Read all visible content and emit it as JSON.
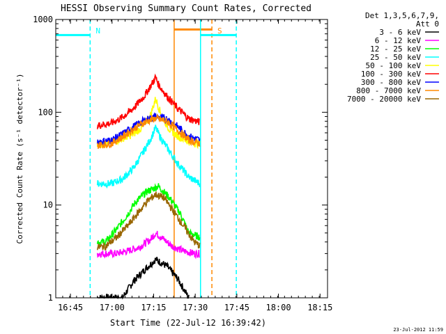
{
  "chart_data": {
    "type": "line",
    "title": "HESSI Observing Summary Count Rates, Corrected",
    "xlabel": "Start Time (22-Jul-12 16:39:42)",
    "ylabel": "Corrected Count Rate (s⁻¹ detector⁻¹)",
    "ylog": true,
    "ylim": [
      1,
      1000
    ],
    "xlim_minutes": [
      0,
      98
    ],
    "x_tick_labels": [
      "16:45",
      "17:00",
      "17:15",
      "17:30",
      "17:45",
      "18:00",
      "18:15"
    ],
    "x_tick_minutes": [
      5.3,
      20.3,
      35.3,
      50.3,
      65.3,
      80.3,
      95.3
    ],
    "y_tick_labels": [
      "1",
      "10",
      "100",
      "1000"
    ],
    "y_tick_values": [
      1,
      10,
      100,
      1000
    ],
    "legend_header": [
      "Det 1,3,5,6,7,9,",
      "Att 0"
    ],
    "legend_position": "top-right",
    "series": [
      {
        "name": "3 - 6 keV",
        "color": "#000000",
        "x": [
          15,
          24,
          28,
          32,
          36,
          40,
          44,
          48
        ],
        "y": [
          1,
          1,
          1.5,
          2,
          2.6,
          2.2,
          1.6,
          1
        ]
      },
      {
        "name": "6 - 12 keV",
        "color": "#ff00ff",
        "x": [
          15,
          18,
          22,
          26,
          30,
          34,
          36,
          38,
          42,
          46,
          50,
          52
        ],
        "y": [
          3,
          3,
          3,
          3.2,
          3.5,
          4.2,
          5,
          4.5,
          3.6,
          3.2,
          3,
          3
        ]
      },
      {
        "name": "12 - 25 keV",
        "color": "#00ff00",
        "x": [
          15,
          18,
          22,
          26,
          29,
          33,
          37,
          41,
          45,
          48,
          52
        ],
        "y": [
          4,
          4,
          5.5,
          8,
          11,
          14,
          16,
          12,
          8,
          5,
          4.5
        ]
      },
      {
        "name": "25 - 50 keV",
        "color": "#00ffff",
        "x": [
          15,
          20,
          24,
          28,
          31,
          34,
          36,
          38,
          41,
          44,
          48,
          52
        ],
        "y": [
          17,
          17,
          19,
          25,
          35,
          50,
          68,
          52,
          38,
          28,
          20,
          17
        ]
      },
      {
        "name": "50 - 100 keV",
        "color": "#ffff00",
        "x": [
          15,
          20,
          24,
          28,
          31,
          34,
          36,
          38,
          41,
          44,
          48,
          52
        ],
        "y": [
          45,
          47,
          52,
          58,
          68,
          90,
          140,
          95,
          65,
          55,
          48,
          45
        ]
      },
      {
        "name": "100 - 300 keV",
        "color": "#ff0000",
        "x": [
          15,
          20,
          24,
          28,
          32,
          35,
          36,
          37,
          40,
          44,
          48,
          52
        ],
        "y": [
          72,
          76,
          88,
          110,
          150,
          210,
          240,
          200,
          150,
          110,
          85,
          78
        ]
      },
      {
        "name": "300 - 800 keV",
        "color": "#0000ff",
        "x": [
          15,
          20,
          24,
          28,
          32,
          36,
          40,
          44,
          48,
          52
        ],
        "y": [
          48,
          50,
          58,
          70,
          82,
          90,
          85,
          70,
          55,
          50
        ]
      },
      {
        "name": "800 - 7000 keV",
        "color": "#ff8800",
        "x": [
          15,
          20,
          24,
          28,
          32,
          36,
          40,
          44,
          48,
          52
        ],
        "y": [
          44,
          46,
          54,
          66,
          78,
          86,
          80,
          64,
          50,
          46
        ]
      },
      {
        "name": "7000 - 20000 keV",
        "color": "#996600",
        "x": [
          15,
          18,
          22,
          26,
          30,
          33,
          36,
          39,
          42,
          46,
          50,
          52
        ],
        "y": [
          3.5,
          3.6,
          4.5,
          6,
          8.5,
          11,
          13,
          12,
          9,
          6,
          4,
          3.6
        ]
      }
    ],
    "annotations": [
      {
        "label": "N",
        "color": "#00ffff",
        "level": 680,
        "x_start": 0,
        "x_end": 12.4,
        "marker_x": 12.4
      },
      {
        "label": "S",
        "color": "#ff8800",
        "level": 780,
        "x_start": 42.7,
        "x_end": 56.3,
        "marker_x": 56.3
      },
      {
        "label": "",
        "color": "#00ffff",
        "level": 680,
        "x_start": 52.2,
        "x_end": 65.1,
        "marker_x": 65.1
      }
    ]
  },
  "timestamp": "23-Jul-2012 11:59"
}
